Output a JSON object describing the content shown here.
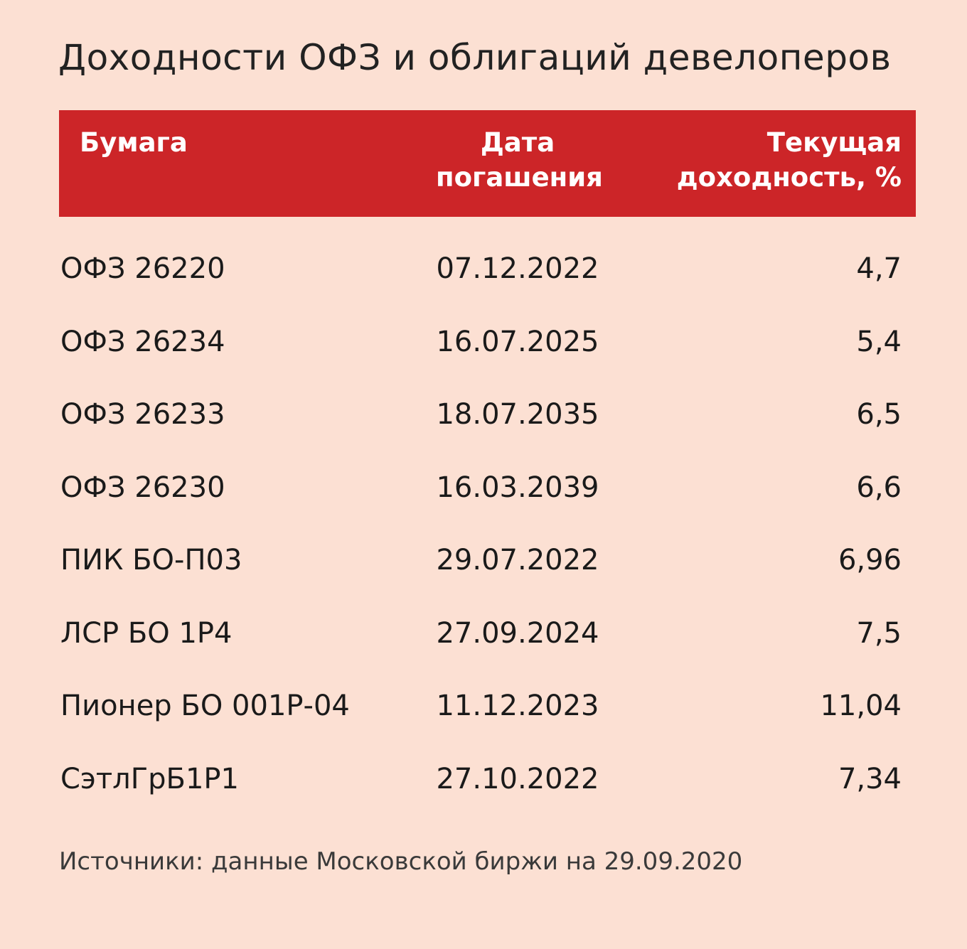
{
  "title": "Доходности ОФЗ и облигаций девелоперов",
  "header": {
    "col_name": "Бумага",
    "col_date_line1": "Дата",
    "col_date_line2": "погашения",
    "col_yield_line1": "Текущая",
    "col_yield_line2": "доходность, %"
  },
  "rows": [
    {
      "name": "ОФЗ 26220",
      "date": "07.12.2022",
      "yield": "4,7"
    },
    {
      "name": "ОФЗ 26234",
      "date": "16.07.2025",
      "yield": "5,4"
    },
    {
      "name": "ОФЗ 26233",
      "date": "18.07.2035",
      "yield": "6,5"
    },
    {
      "name": "ОФЗ 26230",
      "date": "16.03.2039",
      "yield": "6,6"
    },
    {
      "name": "ПИК БО-П03",
      "date": "29.07.2022",
      "yield": "6,96"
    },
    {
      "name": "ЛСР БО 1Р4",
      "date": "27.09.2024",
      "yield": "7,5"
    },
    {
      "name": "Пионер БО 001Р-04",
      "date": "11.12.2023",
      "yield": "11,04"
    },
    {
      "name": "СэтлГрБ1Р1",
      "date": "27.10.2022",
      "yield": "7,34"
    }
  ],
  "source": "Источники: данные Московской биржи на 29.09.2020",
  "colors": {
    "background": "#fce0d3",
    "header_background": "#cc2528",
    "header_text": "#ffffff",
    "text": "#1a1a1a"
  }
}
